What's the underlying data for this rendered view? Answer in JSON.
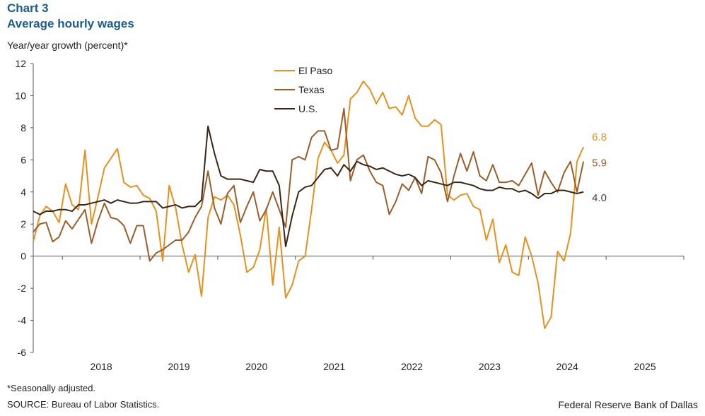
{
  "header": {
    "chart_number": "Chart 3",
    "title": "Average hourly wages",
    "y_unit": "Year/year  growth (percent)*"
  },
  "footer": {
    "footnote": "*Seasonally adjusted.",
    "source": "SOURCE: Bureau of Labor Statistics.",
    "credit": "Federal Reserve Bank of Dallas"
  },
  "chart_data": {
    "type": "line",
    "title": "Average hourly wages",
    "xlabel": "",
    "ylabel": "Year/year  growth (percent)*",
    "ylim": [
      -6,
      12
    ],
    "yticks": [
      "-6",
      "-4",
      "-2",
      "0",
      "2",
      "4",
      "6",
      "8",
      "10",
      "12"
    ],
    "xlim": [
      2017.625,
      2026.0
    ],
    "year_labels": [
      "2018",
      "2019",
      "2020",
      "2021",
      "2022",
      "2023",
      "2024",
      "2025"
    ],
    "x_start": 2017.625,
    "x_step": 0.0833333,
    "legend_position": "top-center",
    "series": [
      {
        "name": "El Paso",
        "color": "#e8901e",
        "end_label": "6.8",
        "values": [
          0.9,
          2.5,
          3.1,
          2.8,
          2.1,
          4.5,
          3.2,
          2.9,
          6.6,
          2.0,
          3.7,
          5.5,
          6.1,
          6.7,
          4.6,
          4.3,
          4.4,
          3.8,
          3.6,
          2.8,
          -0.3,
          4.4,
          3.0,
          0.7,
          -1.0,
          0.1,
          -2.5,
          2.4,
          3.7,
          3.5,
          3.8,
          3.2,
          1.3,
          -1.0,
          -0.7,
          0.4,
          3.0,
          -1.8,
          1.8,
          -2.6,
          -1.8,
          -0.3,
          0.0,
          2.9,
          6.1,
          7.1,
          6.6,
          5.8,
          6.3,
          9.8,
          10.2,
          10.9,
          10.4,
          9.5,
          10.2,
          9.2,
          9.3,
          8.8,
          10.0,
          8.6,
          8.1,
          8.1,
          8.5,
          8.2,
          3.8,
          3.5,
          3.8,
          3.9,
          3.1,
          2.9,
          1.0,
          2.3,
          -0.4,
          0.7,
          -1.0,
          -1.2,
          1.2,
          0.0,
          -1.7,
          -4.5,
          -3.8,
          0.3,
          -0.3,
          1.4,
          5.9,
          6.8
        ]
      },
      {
        "name": "Texas",
        "color": "#9a5e2a",
        "end_label": "5.9",
        "values": [
          1.5,
          2.0,
          2.1,
          0.9,
          1.2,
          2.2,
          1.7,
          2.3,
          2.9,
          0.8,
          2.2,
          3.3,
          2.4,
          2.3,
          1.9,
          0.8,
          1.9,
          1.9,
          -0.3,
          0.2,
          0.4,
          0.7,
          1.0,
          1.0,
          1.5,
          2.4,
          3.1,
          5.3,
          3.0,
          2.0,
          3.9,
          4.4,
          2.1,
          3.1,
          4.0,
          2.2,
          2.9,
          4.0,
          2.9,
          1.8,
          6.0,
          6.2,
          6.0,
          7.4,
          7.8,
          7.8,
          6.6,
          6.7,
          9.2,
          4.7,
          6.0,
          6.3,
          5.3,
          4.6,
          4.4,
          2.6,
          3.4,
          4.5,
          4.1,
          4.9,
          3.9,
          6.2,
          6.0,
          5.2,
          3.4,
          5.0,
          6.4,
          5.3,
          6.5,
          5.0,
          4.7,
          5.7,
          4.6,
          4.6,
          4.7,
          4.4,
          5.1,
          5.8,
          3.8,
          5.3,
          4.6,
          4.0,
          5.2,
          5.9,
          4.0,
          5.9
        ]
      },
      {
        "name": "U.S.",
        "color": "#3a2615",
        "end_label": "4.0",
        "values": [
          2.8,
          2.6,
          2.8,
          2.8,
          2.9,
          2.9,
          2.8,
          3.2,
          3.2,
          3.3,
          3.4,
          3.5,
          3.3,
          3.5,
          3.4,
          3.3,
          3.3,
          3.4,
          3.4,
          3.4,
          3.0,
          3.1,
          3.2,
          3.0,
          3.1,
          3.1,
          3.5,
          8.1,
          6.4,
          5.0,
          4.8,
          4.8,
          4.8,
          4.7,
          4.6,
          5.4,
          5.3,
          5.3,
          4.4,
          0.6,
          2.5,
          4.0,
          4.3,
          4.4,
          4.9,
          5.4,
          5.5,
          5.0,
          5.7,
          5.3,
          5.9,
          5.7,
          5.6,
          5.4,
          5.5,
          5.3,
          5.1,
          5.0,
          5.1,
          4.9,
          4.4,
          4.7,
          4.6,
          4.5,
          4.4,
          4.6,
          4.6,
          4.5,
          4.4,
          4.2,
          4.1,
          4.1,
          4.3,
          4.2,
          4.2,
          4.0,
          4.1,
          3.9,
          3.6,
          3.9,
          3.9,
          4.1,
          4.1,
          4.0,
          3.9,
          4.0
        ]
      }
    ]
  }
}
